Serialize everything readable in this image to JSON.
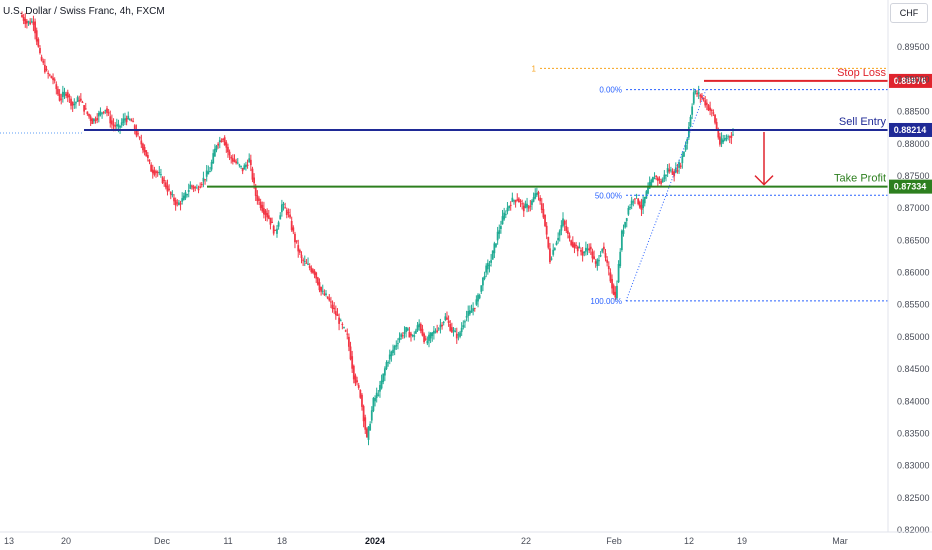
{
  "header": {
    "title": "U.S. Dollar / Swiss Franc, 4h, FXCM",
    "currency": "CHF"
  },
  "chart_data": {
    "type": "candlestick",
    "ylim": [
      0.82,
      0.9
    ],
    "y_ticks": [
      "0.89500",
      "0.89000",
      "0.88500",
      "0.88000",
      "0.87500",
      "0.87000",
      "0.86500",
      "0.86000",
      "0.85500",
      "0.85000",
      "0.84500",
      "0.84000",
      "0.83500",
      "0.83000",
      "0.82500",
      "0.82000"
    ],
    "x_ticks": [
      {
        "label": "13",
        "bold": false
      },
      {
        "label": "20",
        "bold": false
      },
      {
        "label": "Dec",
        "bold": false
      },
      {
        "label": "11",
        "bold": false
      },
      {
        "label": "18",
        "bold": false
      },
      {
        "label": "2024",
        "bold": true
      },
      {
        "label": "22",
        "bold": false
      },
      {
        "label": "Feb",
        "bold": false
      },
      {
        "label": "12",
        "bold": false
      },
      {
        "label": "19",
        "bold": false
      },
      {
        "label": "Mar",
        "bold": false
      }
    ],
    "price_path": [
      [
        0.9,
        0.8988
      ],
      [
        0.8988,
        0.899
      ],
      [
        0.899,
        0.8935
      ],
      [
        0.8935,
        0.891
      ],
      [
        0.891,
        0.89
      ],
      [
        0.89,
        0.887
      ],
      [
        0.887,
        0.888
      ],
      [
        0.888,
        0.886
      ],
      [
        0.886,
        0.887
      ],
      [
        0.887,
        0.885
      ],
      [
        0.885,
        0.8835
      ],
      [
        0.8835,
        0.8845
      ],
      [
        0.8845,
        0.8855
      ],
      [
        0.8855,
        0.883
      ],
      [
        0.883,
        0.8825
      ],
      [
        0.8825,
        0.884
      ],
      [
        0.884,
        0.8835
      ],
      [
        0.8835,
        0.881
      ],
      [
        0.881,
        0.879
      ],
      [
        0.879,
        0.876
      ],
      [
        0.876,
        0.8755
      ],
      [
        0.8755,
        0.874
      ],
      [
        0.874,
        0.872
      ],
      [
        0.872,
        0.8705
      ],
      [
        0.8705,
        0.8715
      ],
      [
        0.8715,
        0.8735
      ],
      [
        0.8735,
        0.873
      ],
      [
        0.873,
        0.8745
      ],
      [
        0.8745,
        0.876
      ],
      [
        0.876,
        0.88
      ],
      [
        0.88,
        0.881
      ],
      [
        0.881,
        0.878
      ],
      [
        0.878,
        0.877
      ],
      [
        0.877,
        0.876
      ],
      [
        0.876,
        0.8775
      ],
      [
        0.8775,
        0.872
      ],
      [
        0.872,
        0.87
      ],
      [
        0.87,
        0.8685
      ],
      [
        0.8685,
        0.866
      ],
      [
        0.866,
        0.8705
      ],
      [
        0.8705,
        0.869
      ],
      [
        0.869,
        0.865
      ],
      [
        0.865,
        0.862
      ],
      [
        0.862,
        0.861
      ],
      [
        0.861,
        0.86
      ],
      [
        0.86,
        0.857
      ],
      [
        0.857,
        0.856
      ],
      [
        0.856,
        0.854
      ],
      [
        0.854,
        0.852
      ],
      [
        0.852,
        0.85
      ],
      [
        0.85,
        0.844
      ],
      [
        0.844,
        0.841
      ],
      [
        0.841,
        0.834
      ],
      [
        0.834,
        0.84
      ],
      [
        0.84,
        0.842
      ],
      [
        0.842,
        0.846
      ],
      [
        0.846,
        0.848
      ],
      [
        0.848,
        0.85
      ],
      [
        0.85,
        0.851
      ],
      [
        0.851,
        0.85
      ],
      [
        0.85,
        0.852
      ],
      [
        0.852,
        0.849
      ],
      [
        0.849,
        0.8505
      ],
      [
        0.8505,
        0.8515
      ],
      [
        0.8515,
        0.853
      ],
      [
        0.853,
        0.851
      ],
      [
        0.851,
        0.85
      ],
      [
        0.85,
        0.853
      ],
      [
        0.853,
        0.854
      ],
      [
        0.854,
        0.856
      ],
      [
        0.856,
        0.86
      ],
      [
        0.86,
        0.862
      ],
      [
        0.862,
        0.866
      ],
      [
        0.866,
        0.869
      ],
      [
        0.869,
        0.871
      ],
      [
        0.871,
        0.8715
      ],
      [
        0.8715,
        0.87
      ],
      [
        0.87,
        0.8705
      ],
      [
        0.8705,
        0.8725
      ],
      [
        0.8725,
        0.869
      ],
      [
        0.869,
        0.862
      ],
      [
        0.862,
        0.865
      ],
      [
        0.865,
        0.868
      ],
      [
        0.868,
        0.865
      ],
      [
        0.865,
        0.864
      ],
      [
        0.864,
        0.863
      ],
      [
        0.863,
        0.864
      ],
      [
        0.864,
        0.861
      ],
      [
        0.861,
        0.864
      ],
      [
        0.864,
        0.86
      ],
      [
        0.86,
        0.856
      ],
      [
        0.856,
        0.866
      ],
      [
        0.866,
        0.87
      ],
      [
        0.87,
        0.872
      ],
      [
        0.872,
        0.87
      ],
      [
        0.87,
        0.873
      ],
      [
        0.873,
        0.875
      ],
      [
        0.875,
        0.874
      ],
      [
        0.874,
        0.876
      ],
      [
        0.876,
        0.8755
      ],
      [
        0.8755,
        0.877
      ],
      [
        0.877,
        0.881
      ],
      [
        0.881,
        0.888
      ],
      [
        0.888,
        0.8875
      ],
      [
        0.8875,
        0.886
      ],
      [
        0.886,
        0.8845
      ],
      [
        0.8845,
        0.88
      ],
      [
        0.88,
        0.881
      ],
      [
        0.881,
        0.8815
      ]
    ],
    "levels": [
      {
        "name": "Stop Loss",
        "value": 0.88976,
        "tag": "0.88976",
        "color": "#e0242d"
      },
      {
        "name": "Sell Entry",
        "value": 0.88214,
        "tag": "0.88214",
        "color": "#1f2a96"
      },
      {
        "name": "Take Profit",
        "value": 0.87334,
        "tag": "0.87334",
        "color": "#2d7f1f"
      }
    ],
    "fib_labels": [
      "1",
      "0.00%",
      "50.00%",
      "100.00%"
    ]
  },
  "colors": {
    "bull": "#22ab94",
    "bear": "#f23645",
    "fib": "#2962ff",
    "fib_top": "#f7a21b"
  }
}
